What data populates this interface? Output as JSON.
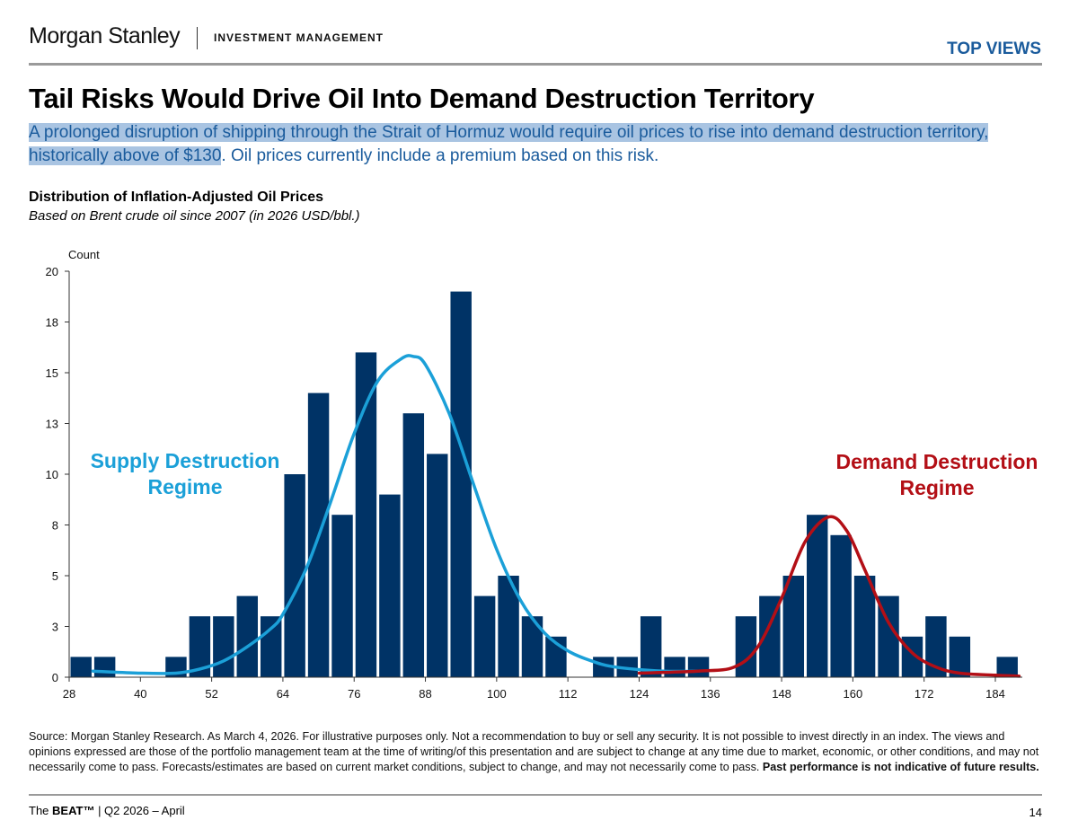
{
  "header": {
    "logo": "Morgan Stanley",
    "division": "INVESTMENT MANAGEMENT",
    "section": "TOP VIEWS"
  },
  "title": "Tail Risks Would Drive Oil Into Demand Destruction Territory",
  "subtitle": {
    "highlighted": "A prolonged disruption of shipping through the Strait of Hormuz would require oil prices to rise into demand destruction territory, historically above of $130",
    "rest": ". Oil prices currently include a premium based on this risk."
  },
  "colors": {
    "bars": "#003366",
    "supply_curve": "#1ba0d8",
    "demand_curve": "#b30f16",
    "accent": "#1a5b9c"
  },
  "chart_data": {
    "type": "bar",
    "title": "Distribution of Inflation-Adjusted Oil Prices",
    "subtitle": "Based on Brent crude oil since 2007 (in 2026 USD/bbl.)",
    "ylabel": "Count",
    "xlabel": "",
    "xlim": [
      28,
      188
    ],
    "ylim": [
      0,
      20
    ],
    "bin_width": 4,
    "x_ticks": [
      28,
      40,
      52,
      64,
      76,
      88,
      100,
      112,
      124,
      136,
      148,
      160,
      172,
      184
    ],
    "y_ticks": [
      {
        "value": 0,
        "label": "0"
      },
      {
        "value": 2.5,
        "label": "3"
      },
      {
        "value": 5,
        "label": "5"
      },
      {
        "value": 7.5,
        "label": "8"
      },
      {
        "value": 10,
        "label": "10"
      },
      {
        "value": 12.5,
        "label": "13"
      },
      {
        "value": 15,
        "label": "15"
      },
      {
        "value": 17.5,
        "label": "18"
      },
      {
        "value": 20,
        "label": "20"
      }
    ],
    "bin_starts": [
      28,
      32,
      36,
      40,
      44,
      48,
      52,
      56,
      60,
      64,
      68,
      72,
      76,
      80,
      84,
      88,
      92,
      96,
      100,
      104,
      108,
      112,
      116,
      120,
      124,
      128,
      132,
      136,
      140,
      144,
      148,
      152,
      156,
      160,
      164,
      168,
      172,
      176,
      180,
      184
    ],
    "counts": [
      1,
      1,
      0,
      0,
      1,
      3,
      3,
      4,
      3,
      10,
      14,
      8,
      16,
      9,
      13,
      11,
      19,
      4,
      5,
      3,
      2,
      0,
      1,
      1,
      3,
      1,
      1,
      0,
      3,
      4,
      5,
      8,
      7,
      5,
      4,
      2,
      3,
      2,
      0,
      1
    ],
    "curves": [
      {
        "name": "Supply Destruction Regime",
        "color": "#1ba0d8",
        "points": [
          [
            32,
            0.3
          ],
          [
            40,
            0.2
          ],
          [
            46,
            0.2
          ],
          [
            50,
            0.4
          ],
          [
            54,
            0.8
          ],
          [
            58,
            1.5
          ],
          [
            62,
            2.4
          ],
          [
            64,
            3.1
          ],
          [
            68,
            5.4
          ],
          [
            72,
            8.6
          ],
          [
            76,
            12
          ],
          [
            80,
            14.6
          ],
          [
            84,
            15.7
          ],
          [
            86,
            15.8
          ],
          [
            88,
            15.4
          ],
          [
            92,
            13
          ],
          [
            96,
            9.6
          ],
          [
            100,
            6.3
          ],
          [
            104,
            3.8
          ],
          [
            108,
            2.2
          ],
          [
            112,
            1.3
          ],
          [
            116,
            0.8
          ],
          [
            120,
            0.5
          ],
          [
            128,
            0.3
          ],
          [
            134,
            0.3
          ]
        ]
      },
      {
        "name": "Demand Destruction Regime",
        "color": "#b30f16",
        "points": [
          [
            124,
            0.2
          ],
          [
            134,
            0.3
          ],
          [
            140,
            0.5
          ],
          [
            144,
            1.5
          ],
          [
            148,
            3.9
          ],
          [
            152,
            6.7
          ],
          [
            156,
            7.9
          ],
          [
            159,
            7.2
          ],
          [
            162,
            5.3
          ],
          [
            166,
            2.7
          ],
          [
            170,
            1.2
          ],
          [
            174,
            0.5
          ],
          [
            178,
            0.2
          ],
          [
            184,
            0.1
          ],
          [
            188,
            0.05
          ]
        ]
      }
    ]
  },
  "footnote": {
    "text": "Source: Morgan Stanley Research. As March 4, 2026. For illustrative purposes only. Not a recommendation to buy or sell any security. It is not possible to invest directly in an index. The views and opinions expressed are those of the portfolio management team at the time of writing/of this presentation and are subject to change at any time due to market, economic, or other conditions, and may not necessarily come to pass.  Forecasts/estimates are based on current market conditions, subject to change, and may not necessarily come to pass. ",
    "bold": "Past performance is not indicative of future results."
  },
  "footer": {
    "prefix": "The ",
    "brand": "BEAT™",
    "suffix": " | Q2 2026 – April",
    "page": "14"
  }
}
